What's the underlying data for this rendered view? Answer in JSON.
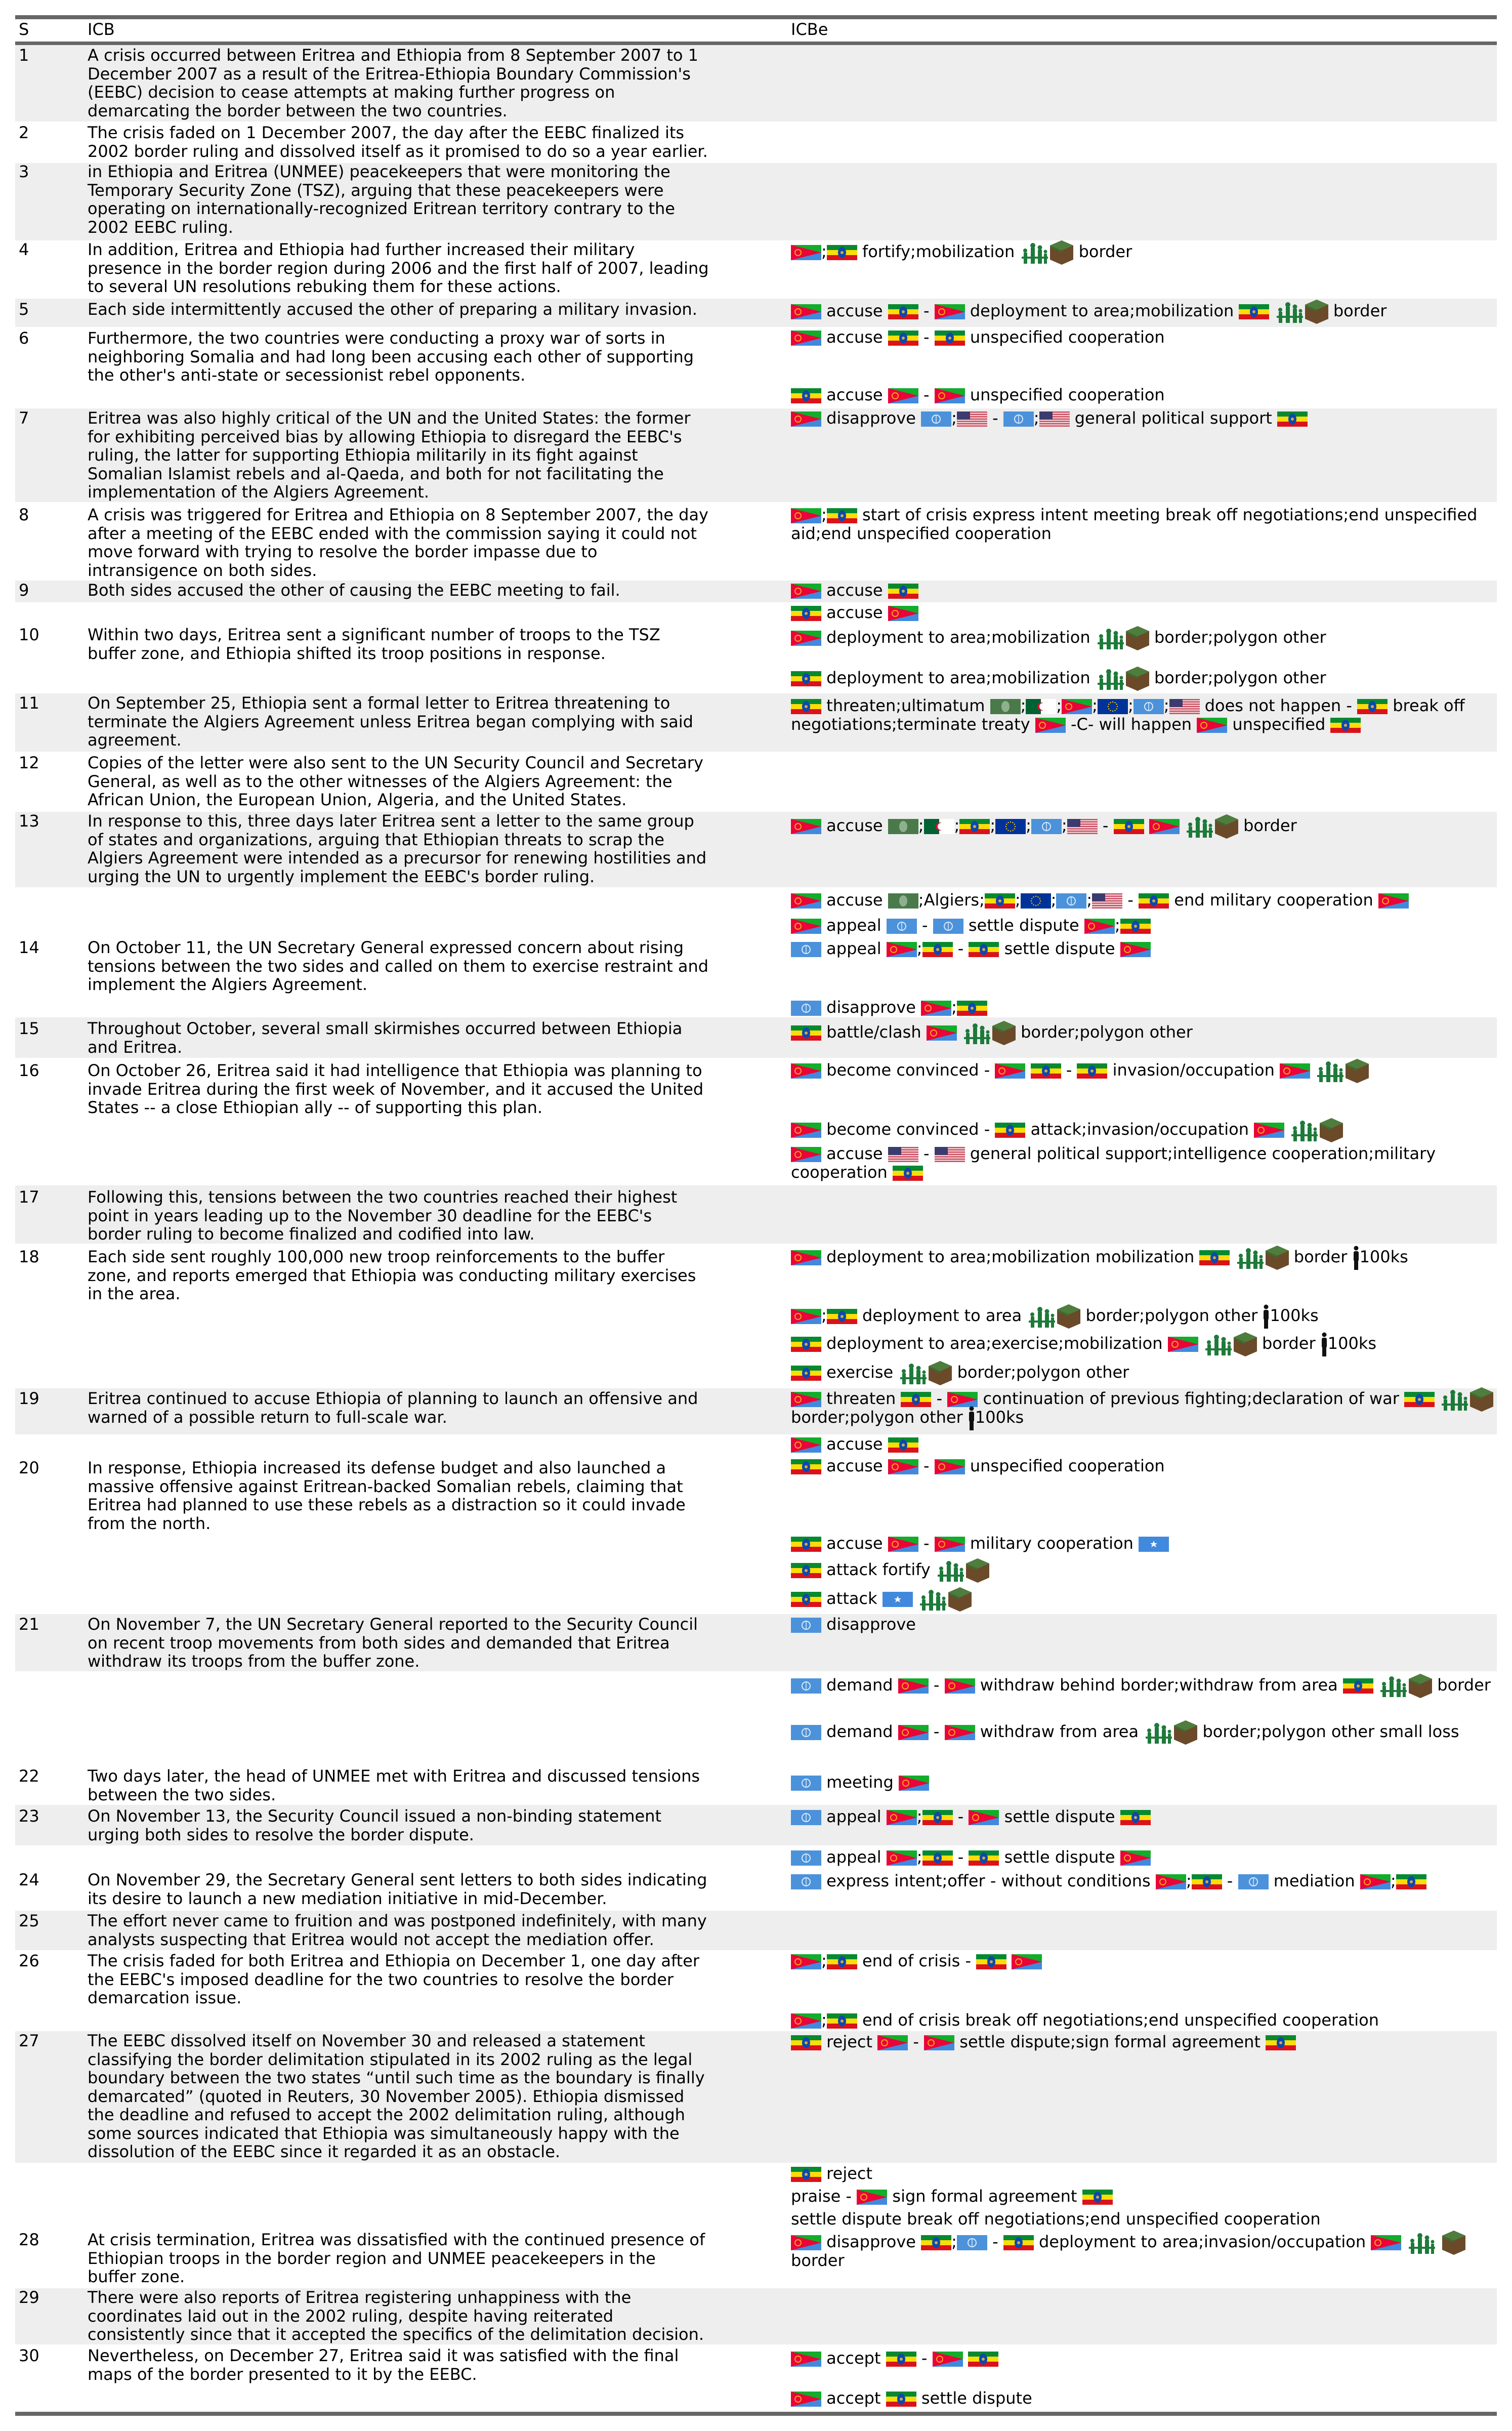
{
  "header": {
    "s": "S",
    "icb": "ICB",
    "icbe": "ICBe"
  },
  "colors": {
    "row_alt_bg": "#eeeeee",
    "rule": "#666666"
  },
  "icon_legend": [
    "ER = Eritrea flag",
    "ET = Ethiopia flag",
    "UN = United Nations flag",
    "US = United States flag",
    "AU = African Union flag",
    "DZ = Algeria flag",
    "EU = European Union flag",
    "SO = Somalia flag",
    "troops = soldiers icon",
    "terrain = terrain cube icon",
    "person = person icon"
  ],
  "rows": [
    {
      "s": "1",
      "icb": [
        "A crisis occurred between Eritrea and Ethiopia from 8 September 2007 to 1",
        "December 2007 as a result of the Eritrea-Ethiopia Boundary Commission's",
        "(EEBC) decision to cease attempts at making further progress on",
        "demarcating the border between the two countries."
      ],
      "events": []
    },
    {
      "s": "2",
      "icb": [
        "The crisis faded on 1 December 2007, the day after the EEBC finalized its",
        "2002 border ruling and dissolved itself as it promised to do so a year earlier."
      ],
      "events": []
    },
    {
      "s": "3",
      "icb": [
        "in Ethiopia and Eritrea (UNMEE) peacekeepers that were monitoring the",
        "Temporary Security Zone (TSZ), arguing that these peacekeepers were",
        "operating on internationally-recognized Eritrean territory contrary to the",
        "2002 EEBC ruling."
      ],
      "events": []
    },
    {
      "s": "4",
      "icb": [
        "In addition, Eritrea and Ethiopia had further increased their military",
        "presence in the border region during 2006 and the first half of 2007, leading",
        "to several UN resolutions rebuking them for these actions."
      ],
      "events": [
        [
          "#ER",
          ";",
          "#ET",
          " fortify;mobilization ",
          "#troops",
          "#terrain",
          " border"
        ]
      ]
    },
    {
      "s": "5",
      "icb": [
        "Each side intermittently accused the other of preparing a military invasion."
      ],
      "events": [
        [
          "#ER",
          " accuse ",
          "#ET",
          " - ",
          "#ER",
          " deployment to area;mobilization ",
          "#ET",
          " ",
          "#troops",
          "#terrain",
          " border"
        ]
      ]
    },
    {
      "s": "6",
      "icb": [
        "Furthermore, the two countries were conducting a proxy war of sorts in",
        "neighboring Somalia and had long been accusing each other of supporting",
        "the other's anti-state or secessionist rebel opponents."
      ],
      "events": [
        [
          "#ER",
          " accuse ",
          "#ET",
          " - ",
          "#ET",
          " unspecified cooperation"
        ],
        [
          "#ET",
          " accuse ",
          "#ER",
          " - ",
          "#ER",
          " unspecified cooperation"
        ]
      ]
    },
    {
      "s": "7",
      "icb": [
        "Eritrea was also highly critical of the UN and the United States: the former",
        "for exhibiting perceived bias by allowing Ethiopia to disregard the EEBC's",
        "ruling, the latter for supporting Ethiopia militarily in its fight against",
        "Somalian Islamist rebels and al-Qaeda, and both for not facilitating the",
        "implementation of the Algiers Agreement."
      ],
      "events": [
        [
          "#ER",
          " disapprove ",
          "#UN",
          ";",
          "#US",
          " - ",
          "#UN",
          ";",
          "#US",
          " general political support ",
          "#ET"
        ]
      ]
    },
    {
      "s": "8",
      "icb": [
        "A crisis was triggered for Eritrea and Ethiopia on 8 September 2007, the day",
        "after a meeting of the EEBC ended with the commission saying it could not",
        "move forward with trying to resolve the border impasse due to",
        "intransigence on both sides."
      ],
      "events": [
        [
          "#ER",
          ";",
          "#ET",
          " start of crisis express intent meeting break off negotiations;end unspecified aid;end unspecified cooperation"
        ]
      ]
    },
    {
      "s": "9",
      "icb": [
        "Both sides accused the other of causing the EEBC meeting to fail."
      ],
      "events": [
        [
          "#ER",
          " accuse ",
          "#ET"
        ]
      ]
    },
    {
      "s": "10",
      "icb": [
        "Within two days, Eritrea sent a significant number of troops to the TSZ",
        "buffer zone, and Ethiopia shifted its troop positions in response."
      ],
      "events": [
        [
          "#ET",
          " accuse ",
          "#ER"
        ],
        [
          "#ER",
          " deployment to area;mobilization ",
          "#troops",
          "#terrain",
          " border;polygon other"
        ],
        [
          "#ET",
          " deployment to area;mobilization ",
          "#troops",
          "#terrain",
          " border;polygon other"
        ]
      ]
    },
    {
      "s": "11",
      "icb": [
        "On September 25, Ethiopia sent a formal letter to Eritrea threatening to",
        "terminate the Algiers Agreement unless Eritrea began complying with said",
        "agreement."
      ],
      "events": [
        [
          "#ET",
          " threaten;ultimatum ",
          "#AU",
          ";",
          "#DZ",
          ";",
          "#ER",
          ";",
          "#EU",
          ";",
          "#UN",
          ";",
          "#US",
          " does not happen - ",
          "#ET",
          " break off negotiations;terminate treaty ",
          "#ER",
          " -C- will happen ",
          "#ER",
          " unspecified ",
          "#ET"
        ]
      ]
    },
    {
      "s": "12",
      "icb": [
        "Copies of the letter were also sent to the UN Security Council and Secretary",
        "General, as well as to the other witnesses of the Algiers Agreement: the",
        "African Union, the European Union, Algeria, and the United States."
      ],
      "events": []
    },
    {
      "s": "13",
      "icb": [
        "In response to this, three days later Eritrea sent a letter to the same group",
        "of states and organizations, arguing that Ethiopian threats to scrap the",
        "Algiers Agreement were intended as a precursor for renewing hostilities and",
        "urging the UN to urgently implement the EEBC's border ruling."
      ],
      "events": [
        [
          "#ER",
          " accuse ",
          "#AU",
          ";",
          "#DZ",
          ";",
          "#ET",
          ";",
          "#EU",
          ";",
          "#UN",
          ";",
          "#US",
          " - ",
          "#ET",
          " ",
          "#ER",
          " ",
          "#troops",
          "#terrain",
          " border"
        ]
      ]
    },
    {
      "s": "14",
      "icb": [
        "On October 11, the UN Secretary General expressed concern about rising",
        "tensions between the two sides and called on them to exercise restraint and",
        "implement the Algiers Agreement."
      ],
      "events": [
        [
          "#ER",
          " accuse ",
          "#AU",
          ";Algiers;",
          "#ET",
          ";",
          "#EU",
          ";",
          "#UN",
          ";",
          "#US",
          " - ",
          "#ET",
          " end military cooperation ",
          "#ER"
        ],
        [
          "#ER",
          " appeal ",
          "#UN",
          " - ",
          "#UN",
          " settle dispute ",
          "#ER",
          ";",
          "#ET"
        ],
        [
          "#UN",
          " appeal ",
          "#ER",
          ";",
          "#ET",
          " - ",
          "#ET",
          " settle dispute ",
          "#ER"
        ],
        [
          "#UN",
          " disapprove ",
          "#ER",
          ";",
          "#ET"
        ]
      ]
    },
    {
      "s": "15",
      "icb": [
        "Throughout October, several small skirmishes occurred between Ethiopia",
        "and Eritrea."
      ],
      "events": [
        [
          "#ET",
          " battle/clash ",
          "#ER",
          " ",
          "#troops",
          "#terrain",
          " border;polygon other"
        ]
      ]
    },
    {
      "s": "16",
      "icb": [
        "On October 26, Eritrea said it had intelligence that Ethiopia was planning to",
        "invade Eritrea during the first week of November, and it accused the United",
        "States -- a close Ethiopian ally -- of supporting this plan."
      ],
      "events": [
        [
          "#ER",
          " become convinced - ",
          "#ER",
          " ",
          "#ET",
          " - ",
          "#ET",
          " invasion/occupation ",
          "#ER",
          " ",
          "#troops",
          "#terrain"
        ],
        [
          "#ER",
          " become convinced - ",
          "#ET",
          " attack;invasion/occupation ",
          "#ER",
          " ",
          "#troops",
          "#terrain"
        ],
        [
          "#ER",
          " accuse ",
          "#US",
          " - ",
          "#US",
          " general political support;intelligence cooperation;military cooperation ",
          "#ET"
        ]
      ]
    },
    {
      "s": "17",
      "icb": [
        "Following this, tensions between the two countries reached their highest",
        "point in years leading up to the November 30 deadline for the EEBC's",
        "border ruling to become finalized and codified into law."
      ],
      "events": []
    },
    {
      "s": "18",
      "icb": [
        "Each side sent roughly 100,000 new troop reinforcements to the buffer",
        "zone, and reports emerged that Ethiopia was conducting military exercises",
        "in the area."
      ],
      "events": [
        [
          "#ER",
          " deployment to area;mobilization mobilization ",
          "#ET",
          " ",
          "#troops",
          "#terrain",
          " border ",
          "#person",
          "100ks"
        ],
        [
          "#ER",
          ";",
          "#ET",
          " deployment to area ",
          "#troops",
          "#terrain",
          " border;polygon other ",
          "#person",
          "100ks"
        ],
        [
          "#ET",
          " deployment to area;exercise;mobilization ",
          "#ER",
          " ",
          "#troops",
          "#terrain",
          " border ",
          "#person",
          "100ks"
        ],
        [
          "#ET",
          " exercise ",
          "#troops",
          "#terrain",
          " border;polygon other"
        ]
      ]
    },
    {
      "s": "19",
      "icb": [
        "Eritrea continued to accuse Ethiopia of planning to launch an offensive and",
        "warned of a possible return to full-scale war."
      ],
      "events": [
        [
          "#ER",
          " threaten ",
          "#ET",
          " - ",
          "#ER",
          " continuation of previous fighting;declaration of war ",
          "#ET",
          " ",
          "#troops",
          "#terrain",
          " border;polygon other ",
          "#person",
          "100ks"
        ]
      ]
    },
    {
      "s": "20",
      "icb": [
        "In response, Ethiopia increased its defense budget and also launched a",
        "massive offensive against Eritrean-backed Somalian rebels, claiming that",
        "Eritrea had planned to use these rebels as a distraction so it could invade",
        "from the north."
      ],
      "events": [
        [
          "#ER",
          " accuse ",
          "#ET"
        ],
        [
          "#ET",
          " accuse ",
          "#ER",
          " - ",
          "#ER",
          " unspecified cooperation"
        ],
        [
          "#ET",
          " accuse ",
          "#ER",
          " - ",
          "#ER",
          " military cooperation ",
          "#SO"
        ],
        [
          "#ET",
          " attack fortify ",
          "#troops",
          "#terrain"
        ],
        [
          "#ET",
          " attack ",
          "#SO",
          " ",
          "#troops",
          "#terrain"
        ]
      ]
    },
    {
      "s": "21",
      "icb": [
        "On November 7, the UN Secretary General reported to the Security Council",
        "on recent troop movements from both sides and demanded that Eritrea",
        "withdraw its troops from the buffer zone."
      ],
      "events": [
        [
          "#UN",
          " disapprove"
        ]
      ]
    },
    {
      "s": "",
      "icb": [],
      "events": [
        [
          "#UN",
          " demand ",
          "#ER",
          " - ",
          "#ER",
          " withdraw behind border;withdraw from area ",
          "#ET",
          " ",
          "#troops",
          "#terrain",
          " border"
        ],
        [
          "#UN",
          " demand ",
          "#ER",
          " - ",
          "#ER",
          " withdraw from area ",
          "#troops",
          "#terrain",
          " border;polygon other small loss"
        ]
      ]
    },
    {
      "s": "22",
      "icb": [
        "Two days later, the head of UNMEE met with Eritrea and discussed tensions",
        "between the two sides."
      ],
      "events": [
        [
          "#UN",
          " meeting ",
          "#ER"
        ]
      ]
    },
    {
      "s": "23",
      "icb": [
        "On November 13, the Security Council issued a non-binding statement",
        "urging both sides to resolve the border dispute."
      ],
      "events": [
        [
          "#UN",
          " appeal ",
          "#ER",
          ";",
          "#ET",
          " - ",
          "#ER",
          " settle dispute ",
          "#ET"
        ]
      ]
    },
    {
      "s": "",
      "icb": [],
      "events": [
        [
          "#UN",
          " appeal ",
          "#ER",
          ";",
          "#ET",
          " - ",
          "#ET",
          " settle dispute ",
          "#ER"
        ]
      ]
    },
    {
      "s": "24",
      "icb": [
        "On November 29, the Secretary General sent letters to both sides indicating",
        "its desire to launch a new mediation initiative in mid-December."
      ],
      "events": [
        [
          "#UN",
          " express intent;offer - without conditions ",
          "#ER",
          ";",
          "#ET",
          " - ",
          "#UN",
          " mediation ",
          "#ER",
          ";",
          "#ET"
        ]
      ]
    },
    {
      "s": "25",
      "icb": [
        "The effort never came to fruition and was postponed indefinitely, with many",
        "analysts suspecting that Eritrea would not accept the mediation offer."
      ],
      "events": []
    },
    {
      "s": "26",
      "icb": [
        "The crisis faded for both Eritrea and Ethiopia on December 1, one day after",
        "the EEBC's imposed deadline for the two countries to resolve the border",
        "demarcation issue."
      ],
      "events": [
        [
          "#ER",
          ";",
          "#ET",
          " end of crisis - ",
          "#ET",
          " ",
          "#ER"
        ],
        [
          "#ER",
          ";",
          "#ET",
          " end of crisis break off negotiations;end unspecified cooperation"
        ]
      ]
    },
    {
      "s": "27",
      "icb": [
        "The EEBC dissolved itself on November 30 and released a statement",
        "classifying the border delimitation stipulated in its 2002 ruling as the legal",
        "boundary between the two states “until such time as the boundary is finally",
        "demarcated” (quoted in Reuters, 30 November 2005). Ethiopia dismissed",
        "the deadline and refused to accept the 2002 delimitation ruling, although",
        "some sources indicated that Ethiopia was simultaneously happy with the",
        "dissolution of the EEBC since it regarded it as an obstacle."
      ],
      "events": [
        [
          "#ET",
          " reject ",
          "#ER",
          " - ",
          "#ER",
          " settle dispute;sign formal agreement ",
          "#ET"
        ]
      ]
    },
    {
      "s": "",
      "icb": [],
      "events": [
        [
          "#ET",
          " reject"
        ],
        [
          "praise - ",
          "#ER",
          " sign formal agreement ",
          "#ET"
        ],
        [
          "settle dispute break off negotiations;end unspecified cooperation"
        ]
      ]
    },
    {
      "s": "28",
      "icb": [
        "At crisis termination, Eritrea was dissatisfied with the continued presence of",
        "Ethiopian troops in the border region and UNMEE peacekeepers in the",
        "buffer zone."
      ],
      "events": [
        [
          "#ER",
          " disapprove ",
          "#ET",
          ";",
          "#UN",
          " - ",
          "#ET",
          " deployment to area;invasion/occupation ",
          "#ER",
          " ",
          "#troops",
          " ",
          "#terrain",
          " border"
        ]
      ]
    },
    {
      "s": "29",
      "icb": [
        "There were also reports of Eritrea registering unhappiness with the",
        "coordinates laid out in the 2002 ruling, despite having reiterated",
        "consistently since that it accepted the specifics of the delimitation decision."
      ],
      "events": []
    },
    {
      "s": "30",
      "icb": [
        "Nevertheless, on December 27, Eritrea said it was satisfied with the final",
        "maps of the border presented to it by the EEBC."
      ],
      "events": [
        [
          "#ER",
          " accept ",
          "#ET",
          " - ",
          "#ER",
          " ",
          "#ET"
        ],
        [
          "#ER",
          " accept ",
          "#ET",
          " settle dispute"
        ]
      ]
    }
  ]
}
